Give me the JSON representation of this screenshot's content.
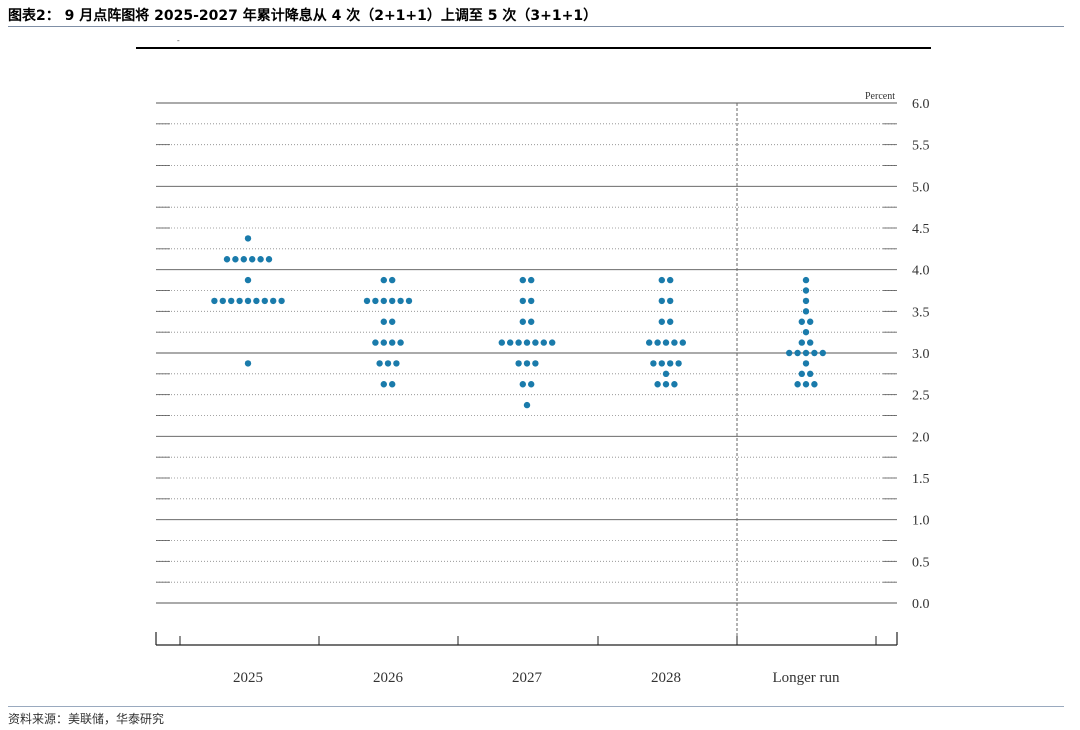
{
  "figure": {
    "title": "图表2： 9 月点阵图将 2025-2027 年累计降息从 4 次（2+1+1）上调至 5 次（3+1+1）",
    "source": "资料来源：美联储，华泰研究",
    "header_mark": "-"
  },
  "chart_data": {
    "type": "scatter",
    "title": "",
    "xlabel": "",
    "ylabel": "Percent",
    "ylim": [
      0.0,
      6.0
    ],
    "yticks": [
      "0.0",
      "0.5",
      "1.0",
      "1.5",
      "2.0",
      "2.5",
      "3.0",
      "3.5",
      "4.0",
      "4.5",
      "5.0",
      "5.5",
      "6.0"
    ],
    "categories": [
      "2025",
      "2026",
      "2027",
      "2028",
      "Longer run"
    ],
    "dot_color": "#1a7bab",
    "grid": "dotted minor lines every 0.25, solid major lines every 1.0",
    "dots": [
      {
        "category": "2025",
        "points": [
          {
            "rate": 4.375,
            "count": 1
          },
          {
            "rate": 4.125,
            "count": 6
          },
          {
            "rate": 3.875,
            "count": 1
          },
          {
            "rate": 3.625,
            "count": 9
          },
          {
            "rate": 2.875,
            "count": 1
          }
        ]
      },
      {
        "category": "2026",
        "points": [
          {
            "rate": 3.875,
            "count": 2
          },
          {
            "rate": 3.625,
            "count": 6
          },
          {
            "rate": 3.375,
            "count": 2
          },
          {
            "rate": 3.125,
            "count": 4
          },
          {
            "rate": 2.875,
            "count": 3
          },
          {
            "rate": 2.625,
            "count": 2
          }
        ]
      },
      {
        "category": "2027",
        "points": [
          {
            "rate": 3.875,
            "count": 2
          },
          {
            "rate": 3.625,
            "count": 2
          },
          {
            "rate": 3.375,
            "count": 2
          },
          {
            "rate": 3.125,
            "count": 7
          },
          {
            "rate": 2.875,
            "count": 3
          },
          {
            "rate": 2.625,
            "count": 2
          },
          {
            "rate": 2.375,
            "count": 1
          }
        ]
      },
      {
        "category": "2028",
        "points": [
          {
            "rate": 3.875,
            "count": 2
          },
          {
            "rate": 3.625,
            "count": 2
          },
          {
            "rate": 3.375,
            "count": 2
          },
          {
            "rate": 3.125,
            "count": 5
          },
          {
            "rate": 2.875,
            "count": 4
          },
          {
            "rate": 2.75,
            "count": 1
          },
          {
            "rate": 2.625,
            "count": 3
          }
        ]
      },
      {
        "category": "Longer run",
        "points": [
          {
            "rate": 3.875,
            "count": 1
          },
          {
            "rate": 3.75,
            "count": 1
          },
          {
            "rate": 3.625,
            "count": 1
          },
          {
            "rate": 3.5,
            "count": 1
          },
          {
            "rate": 3.375,
            "count": 2
          },
          {
            "rate": 3.25,
            "count": 1
          },
          {
            "rate": 3.125,
            "count": 2
          },
          {
            "rate": 3.0,
            "count": 5
          },
          {
            "rate": 2.875,
            "count": 1
          },
          {
            "rate": 2.75,
            "count": 2
          },
          {
            "rate": 2.625,
            "count": 3
          }
        ]
      }
    ]
  }
}
